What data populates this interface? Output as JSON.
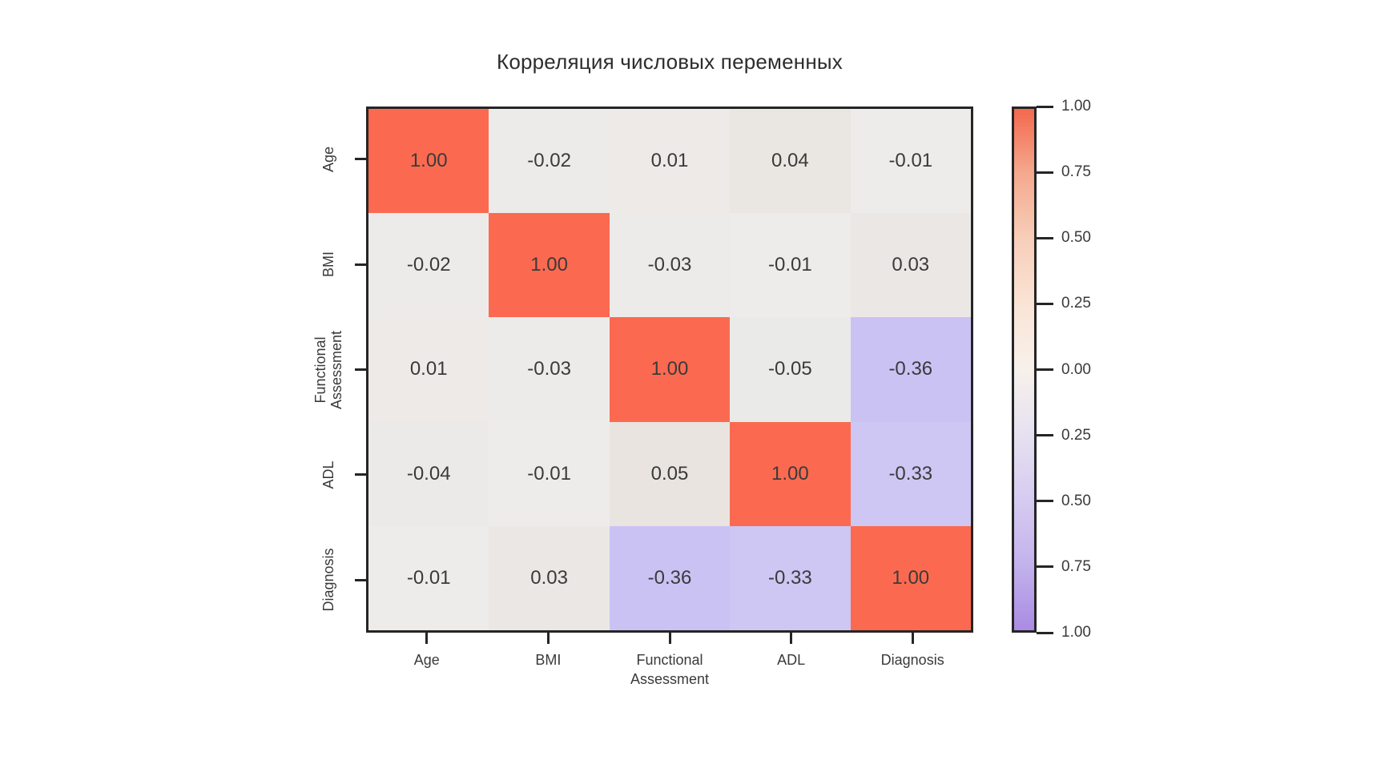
{
  "title": "Корреляция числовых переменных",
  "chart_data": {
    "type": "heatmap",
    "title": "Корреляция числовых переменных",
    "x_labels": [
      "Age",
      "BMI",
      "Functional\nAssessment",
      "ADL",
      "Diagnosis"
    ],
    "y_labels": [
      "Age",
      "BMI",
      "Functional\nAssessment",
      "ADL",
      "Diagnosis"
    ],
    "matrix": [
      [
        1.0,
        -0.02,
        0.01,
        0.04,
        -0.01
      ],
      [
        -0.02,
        1.0,
        -0.03,
        -0.01,
        0.03
      ],
      [
        0.01,
        -0.03,
        1.0,
        -0.05,
        -0.36
      ],
      [
        -0.04,
        -0.01,
        0.05,
        1.0,
        -0.33
      ],
      [
        -0.01,
        0.03,
        -0.36,
        -0.33,
        1.0
      ]
    ],
    "value_decimals": 2,
    "vmin": -1,
    "vmax": 1,
    "grid": false,
    "legend_position": "right-colorbar",
    "colormap_stops": [
      {
        "v": -1.0,
        "color": "#A98BE3"
      },
      {
        "v": -0.36,
        "color": "#CBC2F4"
      },
      {
        "v": -0.05,
        "color": "#EAEAE9"
      },
      {
        "v": 0.0,
        "color": "#EFECEA"
      },
      {
        "v": 0.05,
        "color": "#E9E4E0"
      },
      {
        "v": 0.5,
        "color": "#F7CEB9"
      },
      {
        "v": 1.0,
        "color": "#FB6A50"
      }
    ],
    "colorbar": {
      "tick_labels": [
        "1.00",
        "0.75",
        "0.50",
        "0.25",
        "0.00",
        "0.25",
        "0.50",
        "0.75",
        "1.00"
      ],
      "gradient_stops": [
        {
          "pos": 0,
          "color": "#F2694E"
        },
        {
          "pos": 12.5,
          "color": "#F5A98F"
        },
        {
          "pos": 25,
          "color": "#F7CEB9"
        },
        {
          "pos": 37.5,
          "color": "#FAE4D6"
        },
        {
          "pos": 50,
          "color": "#F7F1EB"
        },
        {
          "pos": 62.5,
          "color": "#E6E1F1"
        },
        {
          "pos": 75,
          "color": "#D6CBF1"
        },
        {
          "pos": 87.5,
          "color": "#C3B2EC"
        },
        {
          "pos": 100,
          "color": "#A98BE3"
        }
      ]
    },
    "colors": {
      "diagonal_red": "#FB6A50",
      "strong_negative_purple": "#CBC2F4",
      "near_zero_gray": "#EAEAE9",
      "text": "#3a3a3a",
      "border": "#252525",
      "background": "#ffffff"
    }
  }
}
